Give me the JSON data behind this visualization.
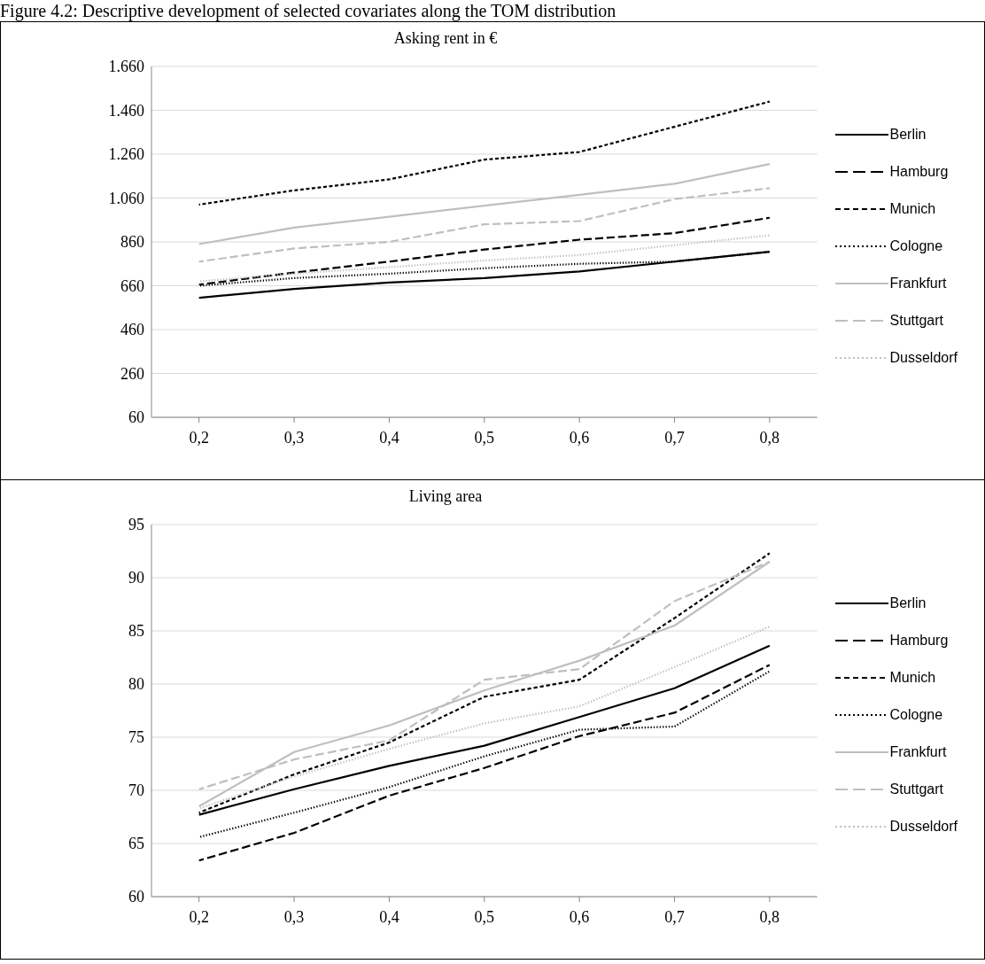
{
  "chart_data": [
    {
      "type": "line",
      "title": "Asking rent in €",
      "annotations": [
        "Figure 4.2: Descriptive development of selected covariates along the TOM distribution"
      ],
      "categories": [
        "0,2",
        "0,3",
        "0,4",
        "0,5",
        "0,6",
        "0,7",
        "0,8"
      ],
      "series": [
        {
          "name": "Berlin",
          "color": "#000000",
          "line_style": "solid",
          "values": [
            605,
            645,
            675,
            695,
            725,
            770,
            815
          ]
        },
        {
          "name": "Hamburg",
          "color": "#000000",
          "line_style": "dashed",
          "values": [
            665,
            720,
            770,
            825,
            870,
            900,
            970
          ]
        },
        {
          "name": "Munich",
          "color": "#000000",
          "line_style": "dashed",
          "values": [
            1030,
            1095,
            1145,
            1235,
            1270,
            1385,
            1500
          ]
        },
        {
          "name": "Cologne",
          "color": "#000000",
          "line_style": "dotted",
          "values": [
            660,
            695,
            715,
            740,
            760,
            770,
            815
          ]
        },
        {
          "name": "Frankfurt",
          "color": "#bfbfbf",
          "line_style": "solid",
          "values": [
            850,
            925,
            975,
            1025,
            1075,
            1125,
            1215
          ]
        },
        {
          "name": "Stuttgart",
          "color": "#bfbfbf",
          "line_style": "dashed",
          "values": [
            770,
            830,
            860,
            940,
            955,
            1055,
            1105
          ]
        },
        {
          "name": "Dusseldorf",
          "color": "#bfbfbf",
          "line_style": "dotted",
          "values": [
            680,
            715,
            745,
            775,
            800,
            845,
            890
          ]
        }
      ],
      "ylim": [
        60,
        1660
      ],
      "yticks": [
        60,
        260,
        460,
        660,
        860,
        {
          "value": 1060,
          "label": "1.060"
        },
        {
          "value": 1260,
          "label": "1.260"
        },
        {
          "value": 1460,
          "label": "1.460"
        },
        {
          "value": 1660,
          "label": "1.660"
        }
      ],
      "grid": "y",
      "legend": "right",
      "marker": "none"
    },
    {
      "type": "line",
      "title": "Living area",
      "categories": [
        "0,2",
        "0,3",
        "0,4",
        "0,5",
        "0,6",
        "0,7",
        "0,8"
      ],
      "series": [
        {
          "name": "Berlin",
          "color": "#000000",
          "line_style": "solid",
          "values": [
            67.7,
            70.1,
            72.3,
            74.2,
            76.9,
            79.6,
            83.6
          ]
        },
        {
          "name": "Hamburg",
          "color": "#000000",
          "line_style": "dashed",
          "values": [
            63.4,
            66.0,
            69.5,
            72.1,
            75.1,
            77.3,
            81.8
          ]
        },
        {
          "name": "Munich",
          "color": "#000000",
          "line_style": "dashed",
          "values": [
            67.9,
            71.5,
            74.5,
            78.8,
            80.4,
            86.2,
            92.3
          ]
        },
        {
          "name": "Cologne",
          "color": "#000000",
          "line_style": "dotted",
          "values": [
            65.6,
            67.9,
            70.3,
            73.2,
            75.7,
            76.0,
            81.2
          ]
        },
        {
          "name": "Frankfurt",
          "color": "#bfbfbf",
          "line_style": "solid",
          "values": [
            68.5,
            73.6,
            76.1,
            79.4,
            82.2,
            85.5,
            91.5
          ]
        },
        {
          "name": "Stuttgart",
          "color": "#bfbfbf",
          "line_style": "dashed",
          "values": [
            70.1,
            72.9,
            74.7,
            80.4,
            81.4,
            87.8,
            91.5
          ]
        },
        {
          "name": "Dusseldorf",
          "color": "#bfbfbf",
          "line_style": "dotted",
          "values": [
            68.3,
            71.3,
            73.9,
            76.3,
            77.9,
            81.6,
            85.4
          ]
        }
      ],
      "ylim": [
        60,
        95
      ],
      "yticks": [
        60,
        65,
        70,
        75,
        80,
        85,
        90,
        95
      ],
      "grid": "y",
      "legend": "right",
      "marker": "none"
    }
  ]
}
